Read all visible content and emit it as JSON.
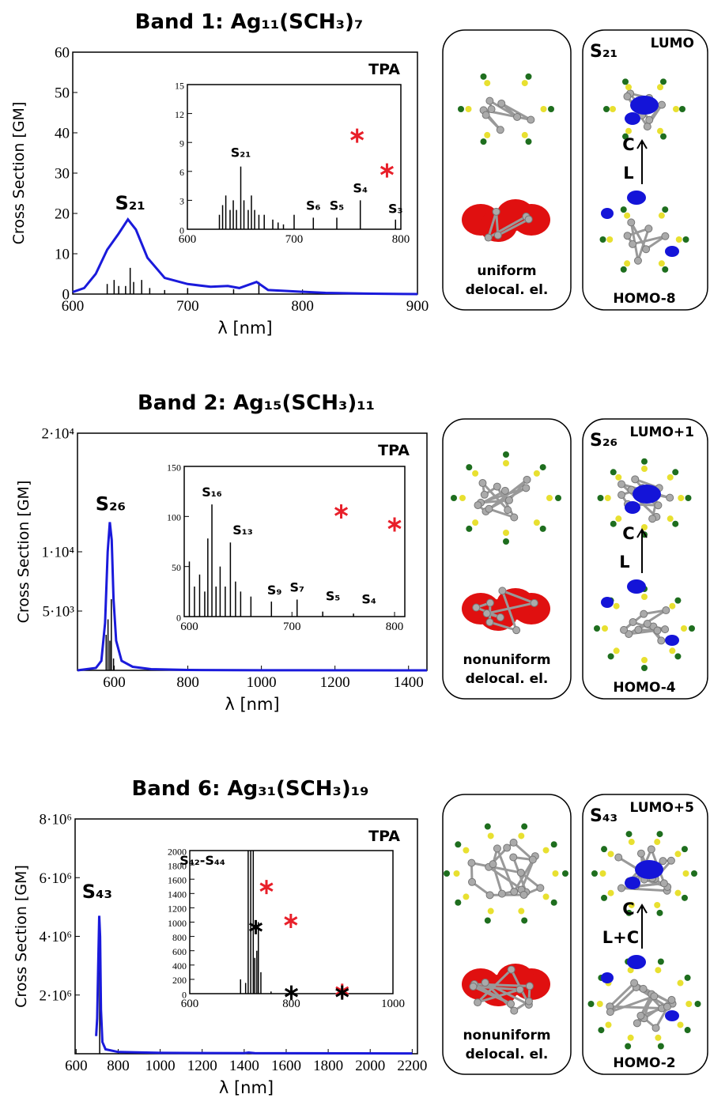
{
  "chart_data": [
    {
      "type": "line",
      "title": "Band 1: Ag₁₁(SCH₃)₇",
      "label": "TPA",
      "xlabel": "λ [nm]",
      "ylabel": "Cross Section [GM]",
      "xlim": [
        600,
        900
      ],
      "ylim": [
        0,
        60
      ],
      "xticks": [
        600,
        700,
        800,
        900
      ],
      "yticks": [
        0,
        10,
        20,
        30,
        40,
        50,
        60
      ],
      "curve": {
        "color": "#1a1adb",
        "x": [
          600,
          610,
          620,
          630,
          640,
          648,
          655,
          665,
          680,
          700,
          720,
          735,
          745,
          760,
          770,
          790,
          820,
          860,
          900
        ],
        "values": [
          0.5,
          1.5,
          5,
          11,
          15,
          18.5,
          16,
          9,
          4,
          2.5,
          1.8,
          2,
          1.5,
          3,
          1,
          0.7,
          0.3,
          0.1,
          0
        ]
      },
      "sticks": {
        "color": "#000000",
        "x": [
          630,
          636,
          640,
          646,
          650,
          653,
          660,
          667,
          680,
          700,
          740,
          762
        ],
        "values": [
          2.5,
          3.5,
          2,
          2,
          6.5,
          3,
          3.5,
          1.5,
          1,
          1.5,
          1.2,
          3
        ]
      },
      "annotations": [
        {
          "text": "S₂₁",
          "x": 650,
          "y": 21
        }
      ]
    },
    {
      "type": "stick",
      "xlim": [
        600,
        800
      ],
      "ylim": [
        0,
        15
      ],
      "xticks": [
        600,
        700,
        800
      ],
      "yticks": [
        0,
        3,
        6,
        9,
        12,
        15
      ],
      "sticks": {
        "color": "#000000",
        "x": [
          630,
          633,
          636,
          640,
          643,
          646,
          650,
          653,
          657,
          660,
          663,
          667,
          672,
          680,
          685,
          690,
          700,
          718,
          740,
          762,
          795
        ],
        "values": [
          1.5,
          2.5,
          3.5,
          2,
          3,
          2,
          6.5,
          3,
          2,
          3.5,
          2,
          1.5,
          1.5,
          1,
          0.7,
          0.5,
          1.5,
          1.2,
          1.2,
          3,
          1
        ]
      },
      "markers": [
        {
          "color": "#e8202a",
          "x": [
            759,
            787
          ],
          "values": [
            9.7,
            6.1
          ]
        }
      ],
      "annotations": [
        {
          "text": "S₂₁",
          "x": 650,
          "y": 7.5
        },
        {
          "text": "S₆",
          "x": 718,
          "y": 2
        },
        {
          "text": "S₅",
          "x": 740,
          "y": 2
        },
        {
          "text": "S₄",
          "x": 762,
          "y": 3.8
        },
        {
          "text": "S₃",
          "x": 795,
          "y": 1.7
        }
      ]
    },
    {
      "type": "line",
      "title": "Band 2: Ag₁₅(SCH₃)₁₁",
      "label": "TPA",
      "xlabel": "λ [nm]",
      "ylabel": "Cross Section [GM]",
      "xlim": [
        500,
        1450
      ],
      "ylim": [
        0,
        20000
      ],
      "xticks": [
        600,
        800,
        1000,
        1200,
        1400
      ],
      "yticks": [
        {
          "value": 5000,
          "label": "5·10³"
        },
        {
          "value": 10000,
          "label": "1·10⁴"
        },
        {
          "value": 20000,
          "label": "2·10⁴"
        }
      ],
      "curve": {
        "color": "#1a1adb",
        "x": [
          500,
          550,
          565,
          575,
          582,
          588,
          593,
          598,
          605,
          620,
          650,
          700,
          800,
          1000,
          1450
        ],
        "values": [
          0,
          200,
          800,
          4000,
          10000,
          12500,
          11000,
          6000,
          2500,
          800,
          300,
          100,
          30,
          10,
          0
        ]
      },
      "sticks": {
        "color": "#000000",
        "x": [
          578,
          583,
          588,
          592,
          598
        ],
        "values": [
          3000,
          4300,
          2500,
          6000,
          1000
        ]
      },
      "annotations": [
        {
          "text": "S₂₆",
          "x": 590,
          "y": 13500
        }
      ]
    },
    {
      "type": "stick",
      "xlim": [
        595,
        810
      ],
      "ylim": [
        0,
        150
      ],
      "xticks": [
        600,
        700,
        800
      ],
      "yticks": [
        0,
        50,
        100,
        150
      ],
      "sticks": {
        "color": "#000000",
        "x": [
          600,
          605,
          610,
          615,
          618,
          622,
          626,
          630,
          635,
          640,
          645,
          650,
          660,
          680,
          705,
          730,
          760
        ],
        "values": [
          55,
          30,
          42,
          25,
          78,
          112,
          30,
          50,
          30,
          74,
          35,
          25,
          20,
          15,
          17,
          5,
          3
        ]
      },
      "markers": [
        {
          "color": "#e8202a",
          "x": [
            748,
            800
          ],
          "values": [
            105,
            92
          ]
        }
      ],
      "annotations": [
        {
          "text": "S₁₆",
          "x": 622,
          "y": 120
        },
        {
          "text": "S₁₃",
          "x": 652,
          "y": 82
        },
        {
          "text": "S₉",
          "x": 683,
          "y": 22
        },
        {
          "text": "S₇",
          "x": 705,
          "y": 25
        },
        {
          "text": "S₅",
          "x": 740,
          "y": 16
        },
        {
          "text": "S₄",
          "x": 775,
          "y": 13
        }
      ]
    },
    {
      "type": "line",
      "title": "Band 6: Ag₃₁(SCH₃)₁₉",
      "label": "TPA",
      "xlabel": "λ [nm]",
      "ylabel": "Cross Section [GM]",
      "xlim": [
        595,
        2225
      ],
      "ylim": [
        0,
        8000000
      ],
      "xticks": [
        600,
        800,
        1000,
        1200,
        1400,
        1600,
        1800,
        2000,
        2200
      ],
      "yticks": [
        {
          "value": 2000000,
          "label": "2·10⁶"
        },
        {
          "value": 4000000,
          "label": "4·10⁶"
        },
        {
          "value": 6000000,
          "label": "6·10⁶"
        },
        {
          "value": 8000000,
          "label": "8·10⁶"
        }
      ],
      "curve": {
        "color": "#1a1adb",
        "x": [
          695,
          700,
          705,
          710,
          714,
          718,
          725,
          740,
          800,
          1000,
          1400,
          1420,
          1450,
          2200
        ],
        "values": [
          600000,
          1200000,
          3000000,
          4700000,
          4000000,
          1500000,
          400000,
          150000,
          60000,
          30000,
          20000,
          40000,
          20000,
          10000
        ]
      },
      "sticks": {
        "color": "#000000",
        "x": [
          712
        ],
        "values": [
          4500000
        ]
      },
      "annotations": [
        {
          "text": "S₄₃",
          "x": 700,
          "y": 5300000
        }
      ]
    },
    {
      "type": "stick",
      "xlim": [
        600,
        1000
      ],
      "ylim": [
        0,
        2000
      ],
      "xticks": [
        600,
        800,
        1000
      ],
      "yticks": [
        0,
        200,
        400,
        600,
        800,
        1000,
        1200,
        1400,
        1600,
        1800,
        2000
      ],
      "sticks": {
        "color": "#000000",
        "x": [
          700,
          710,
          715,
          720,
          725,
          728,
          732,
          735,
          740,
          760,
          800,
          900
        ],
        "values": [
          200,
          150,
          2000,
          2000,
          2000,
          500,
          600,
          1000,
          300,
          30,
          20,
          10
        ]
      },
      "markers": [
        {
          "color": "#e8202a",
          "x": [
            751,
            799,
            900
          ],
          "values": [
            1490,
            1017,
            40
          ]
        },
        {
          "color": "#000000",
          "x": [
            730,
            800,
            900
          ],
          "values": [
            930,
            15,
            15
          ]
        }
      ],
      "annotations": [
        {
          "text": "S₄₂-S₄₄",
          "x": 625,
          "y": 1800
        }
      ]
    }
  ],
  "diagrams": [
    {
      "structure_label": [
        "uniform",
        "delocal. el."
      ],
      "state": "S₂₁",
      "upper_orbital": "LUMO",
      "excitation_to": "C",
      "excitation_from": "L",
      "lower_orbital": "HOMO-8"
    },
    {
      "structure_label": [
        "nonuniform",
        "delocal. el."
      ],
      "state": "S₂₆",
      "upper_orbital": "LUMO+1",
      "excitation_to": "C",
      "excitation_from": "L",
      "lower_orbital": "HOMO-4"
    },
    {
      "structure_label": [
        "nonuniform",
        "delocal. el."
      ],
      "state": "S₄₃",
      "upper_orbital": "LUMO+5",
      "excitation_to": "C",
      "excitation_from": "L+C",
      "lower_orbital": "HOMO-2"
    }
  ]
}
